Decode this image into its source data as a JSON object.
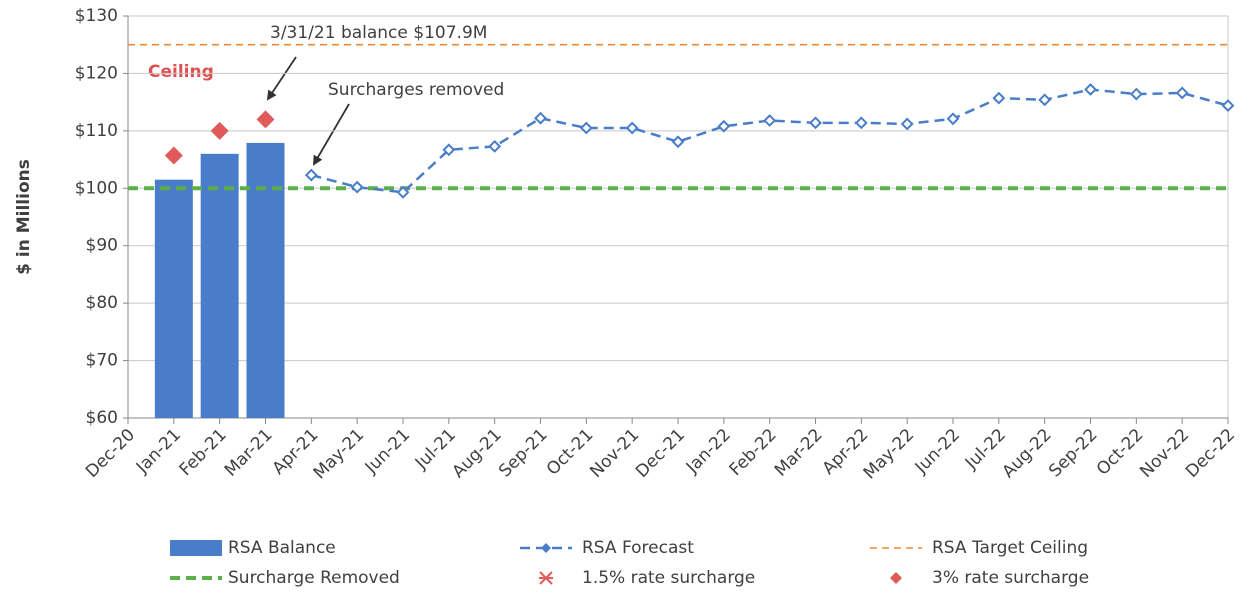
{
  "chart_data": {
    "type": "combo",
    "y_label": "$ in Millions",
    "categories": [
      "Dec-20",
      "Jan-21",
      "Feb-21",
      "Mar-21",
      "Apr-21",
      "May-21",
      "Jun-21",
      "Jul-21",
      "Aug-21",
      "Sep-21",
      "Oct-21",
      "Nov-21",
      "Dec-21",
      "Jan-22",
      "Feb-22",
      "Mar-22",
      "Apr-22",
      "May-22",
      "Jun-22",
      "Jul-22",
      "Aug-22",
      "Sep-22",
      "Oct-22",
      "Nov-22",
      "Dec-22"
    ],
    "ylim": [
      60,
      130
    ],
    "yticks": [
      {
        "value": 60,
        "label": "$60"
      },
      {
        "value": 70,
        "label": "$70"
      },
      {
        "value": 80,
        "label": "$80"
      },
      {
        "value": 90,
        "label": "$90"
      },
      {
        "value": 100,
        "label": "$100"
      },
      {
        "value": 110,
        "label": "$110"
      },
      {
        "value": 120,
        "label": "$120"
      },
      {
        "value": 130,
        "label": "$130"
      }
    ],
    "grid": true,
    "legend": "bottom",
    "series": [
      {
        "name": "RSA Balance",
        "type": "bar",
        "color": "#4a7dc9",
        "values": [
          null,
          101.5,
          106,
          107.9,
          null,
          null,
          null,
          null,
          null,
          null,
          null,
          null,
          null,
          null,
          null,
          null,
          null,
          null,
          null,
          null,
          null,
          null,
          null,
          null,
          null
        ]
      },
      {
        "name": "RSA Forecast",
        "type": "line",
        "color": "#4a7dc9",
        "values": [
          null,
          null,
          null,
          null,
          102.3,
          100.2,
          99.3,
          106.7,
          107.3,
          112.2,
          110.5,
          110.5,
          108.1,
          110.8,
          111.8,
          111.4,
          111.4,
          111.2,
          112.1,
          115.7,
          115.4,
          117.2,
          116.4,
          116.6,
          114.4
        ]
      },
      {
        "name": "RSA Target Ceiling",
        "type": "hline",
        "color": "#f0883a",
        "value": 125
      },
      {
        "name": "Surcharge Removed",
        "type": "hline",
        "color": "#5bb04a",
        "value": 100
      },
      {
        "name": "1.5% rate surcharge",
        "type": "star",
        "color": "#e05a5a",
        "values": [
          null,
          null,
          null,
          null,
          null,
          null,
          null,
          null,
          null,
          null,
          null,
          null,
          null,
          null,
          null,
          null,
          null,
          null,
          null,
          null,
          null,
          null,
          null,
          null,
          null
        ]
      },
      {
        "name": "3% rate surcharge",
        "type": "diamond",
        "color": "#e05a5a",
        "values": [
          null,
          105.7,
          110,
          112,
          null,
          null,
          null,
          null,
          null,
          null,
          null,
          null,
          null,
          null,
          null,
          null,
          null,
          null,
          null,
          null,
          null,
          null,
          null,
          null,
          null
        ]
      }
    ],
    "annotations": [
      "3/31/21 balance $107.9M",
      "Surcharges removed",
      "Ceiling"
    ]
  }
}
